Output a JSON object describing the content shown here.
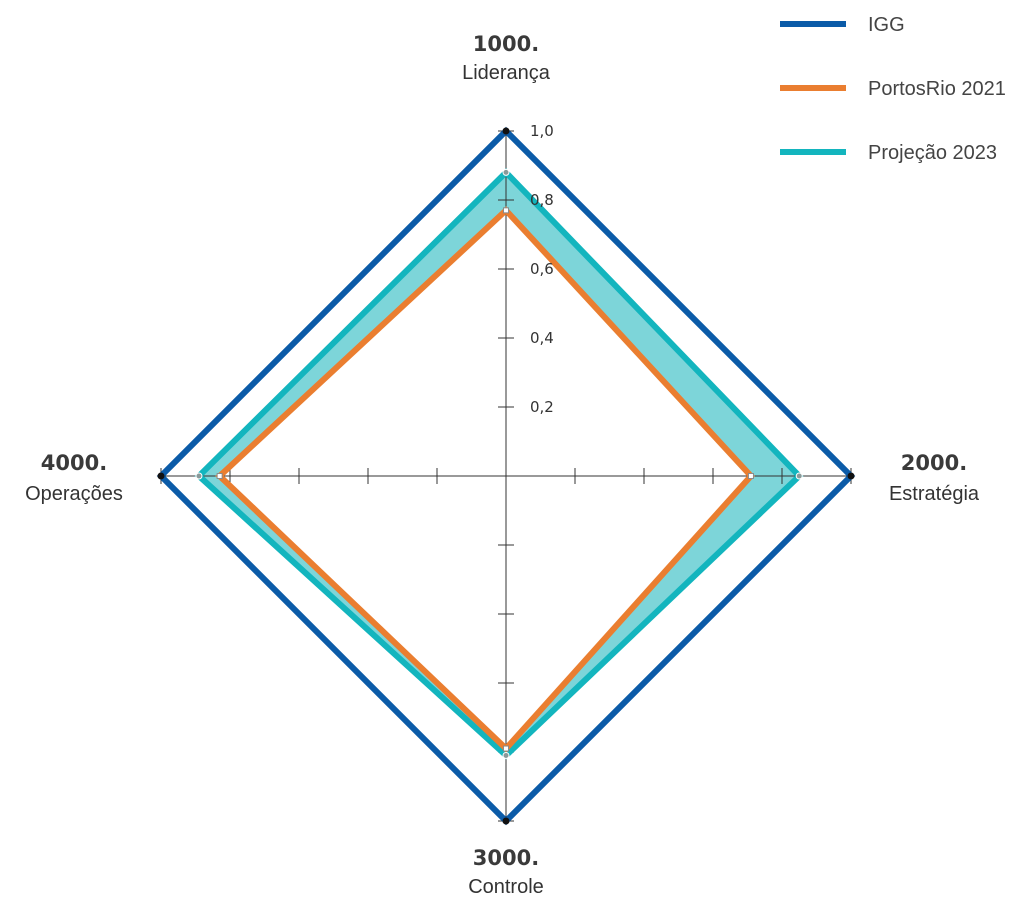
{
  "chart_data": {
    "type": "radar",
    "axes": [
      {
        "number": "1000.",
        "name": "Liderança"
      },
      {
        "number": "2000.",
        "name": "Estratégia"
      },
      {
        "number": "3000.",
        "name": "Controle"
      },
      {
        "number": "4000.",
        "name": "Operações"
      }
    ],
    "r_ticks": [
      0.2,
      0.4,
      0.6,
      0.8,
      1.0
    ],
    "r_tick_labels": [
      "0,2",
      "0,4",
      "0,6",
      "0,8",
      "1,0"
    ],
    "r_range": [
      0,
      1.0
    ],
    "series": [
      {
        "name": "IGG",
        "values": [
          1.0,
          1.0,
          1.0,
          1.0
        ],
        "color": "#0B5BA8"
      },
      {
        "name": "PortosRio 2021",
        "values": [
          0.77,
          0.71,
          0.79,
          0.83
        ],
        "color": "#EA7E30"
      },
      {
        "name": "Projeção 2023",
        "values": [
          0.88,
          0.85,
          0.81,
          0.89
        ],
        "color": "#13B5BE",
        "fill": "#7DD5D9"
      }
    ],
    "legend_position": "top-right"
  }
}
